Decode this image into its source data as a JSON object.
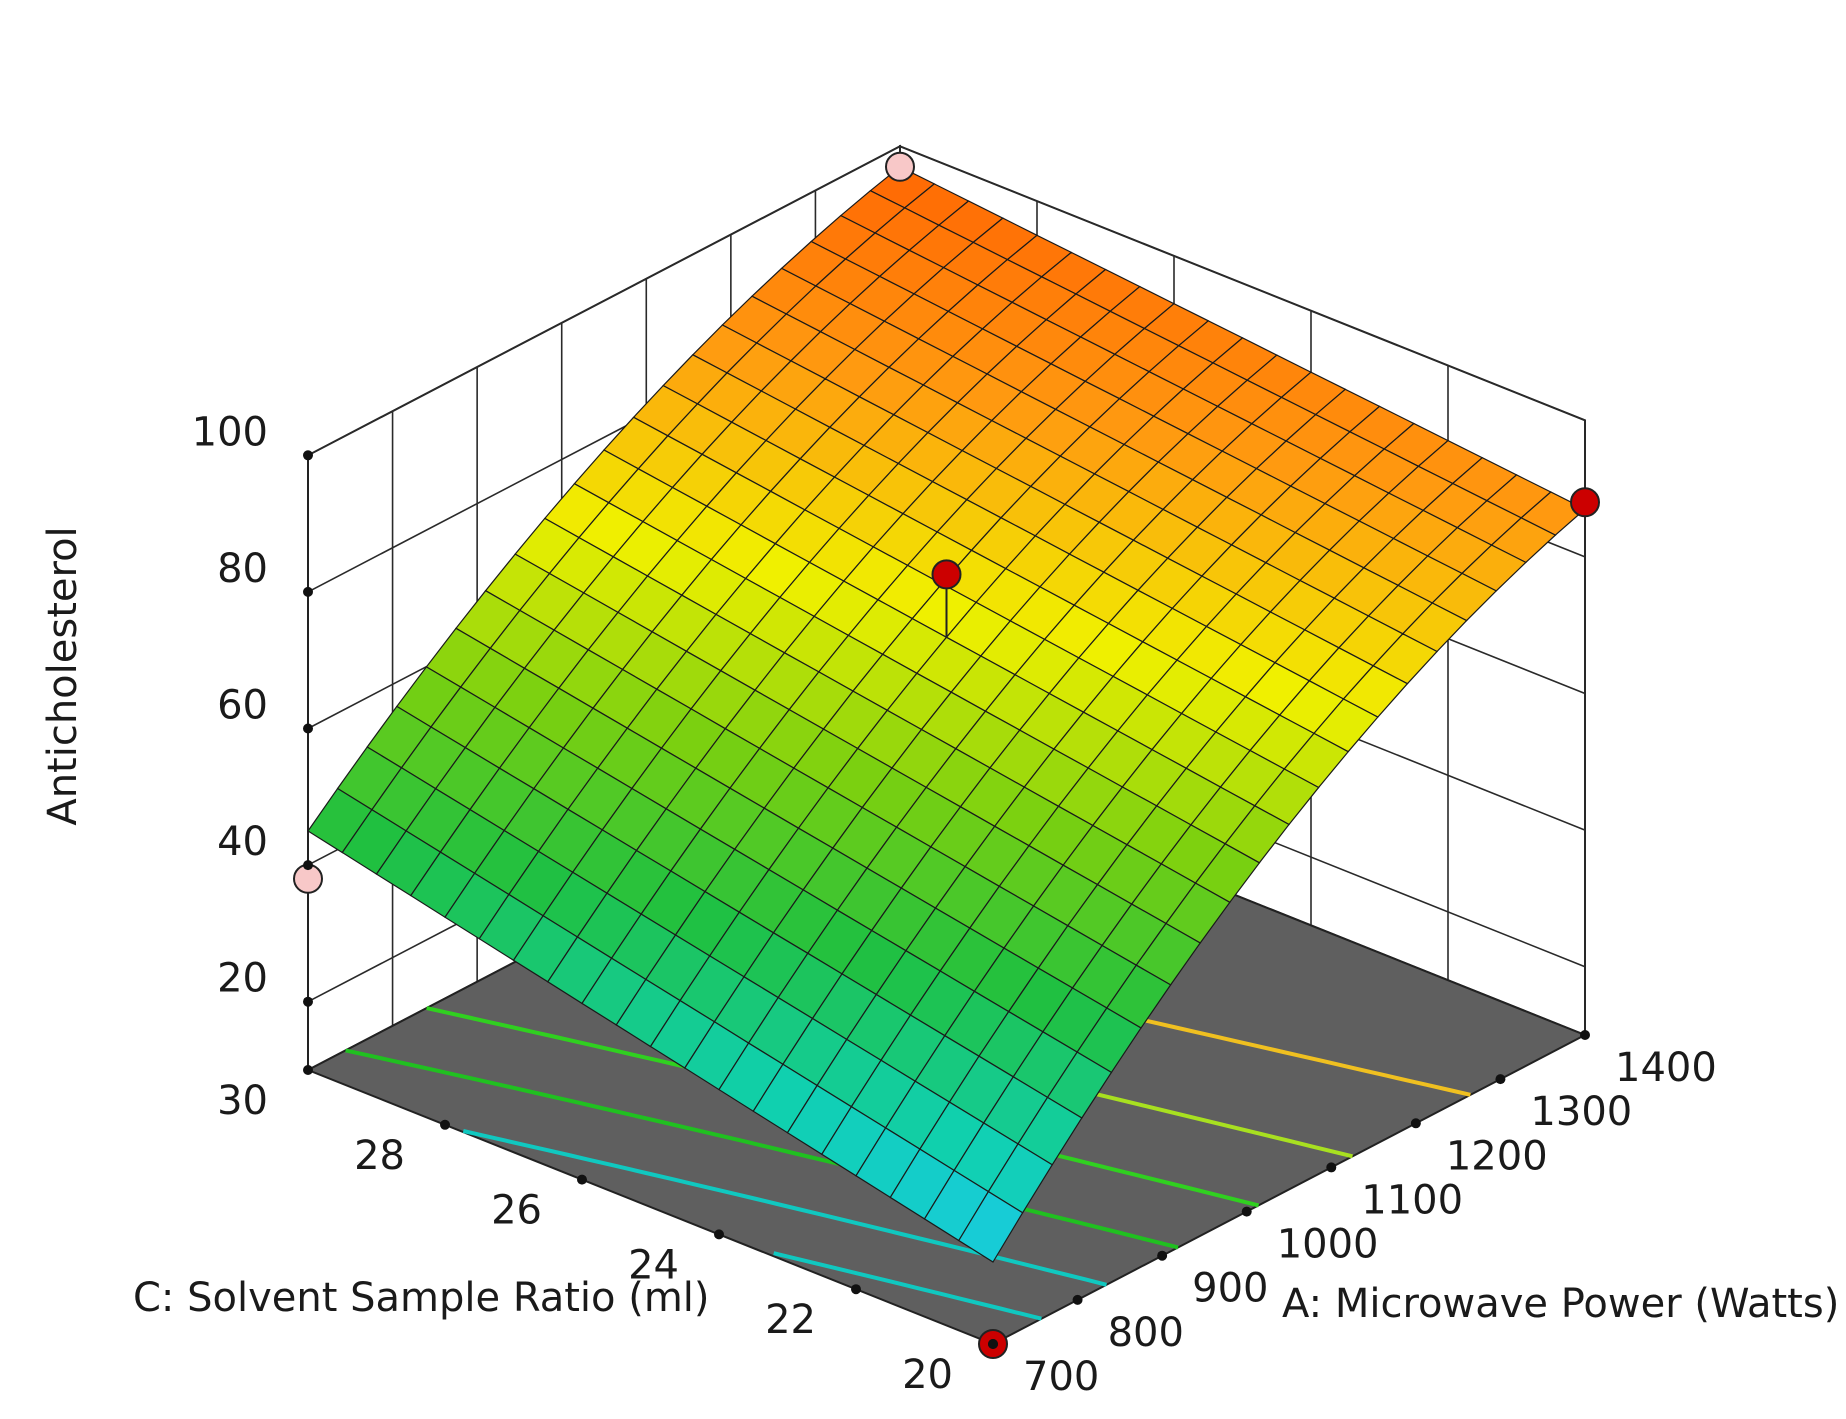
{
  "chart_data": {
    "type": "surface",
    "zlabel": "Anticholesterol",
    "xlabel": "A: Microwave Power (Watts)",
    "ylabel": "C: Solvent Sample Ratio (ml)",
    "z_ticks": [
      "20",
      "40",
      "60",
      "80",
      "100"
    ],
    "x_ticks": [
      "700",
      "800",
      "900",
      "1000",
      "1100",
      "1200",
      "1300",
      "1400"
    ],
    "y_ticks": [
      "20",
      "22",
      "24",
      "26",
      "28",
      "30"
    ],
    "z_range": [
      10,
      100
    ],
    "x_range": [
      700,
      1400
    ],
    "y_range": [
      20,
      30
    ],
    "surface_corners": [
      {
        "x": 700,
        "y": 20,
        "z": 22
      },
      {
        "x": 1400,
        "y": 20,
        "z": 87
      },
      {
        "x": 700,
        "y": 30,
        "z": 45
      },
      {
        "x": 1400,
        "y": 30,
        "z": 97
      }
    ],
    "design_points": [
      {
        "x": 1050,
        "y": 25,
        "z": 80,
        "color": "#cc0000"
      },
      {
        "x": 1400,
        "y": 20,
        "z": 88,
        "color": "#cc0000"
      },
      {
        "x": 700,
        "y": 20,
        "z": 10,
        "color": "#cc0000"
      },
      {
        "x": 1400,
        "y": 30,
        "z": 97,
        "color": "#f8c8c8"
      },
      {
        "x": 700,
        "y": 30,
        "z": 38,
        "color": "#f8c8c8"
      }
    ],
    "contour_levels": [
      30,
      40,
      50,
      60,
      70,
      80
    ],
    "contour_colors": [
      "#10c8c0",
      "#10c8c0",
      "#20c020",
      "#30d020",
      "#a8e020",
      "#f0c020"
    ],
    "floor_color": "#5f5f5f",
    "colormap": [
      "#1ec8ff",
      "#10d0b0",
      "#20c040",
      "#7ad010",
      "#f0f000",
      "#ff9a10",
      "#ff5a00"
    ]
  }
}
